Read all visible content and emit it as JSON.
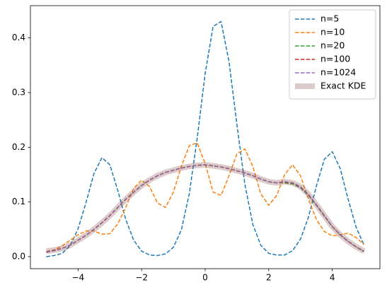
{
  "chart_data": {
    "type": "line",
    "x": [
      -5,
      -4.75,
      -4.5,
      -4.25,
      -4,
      -3.75,
      -3.5,
      -3.25,
      -3,
      -2.75,
      -2.5,
      -2.25,
      -2,
      -1.75,
      -1.5,
      -1.25,
      -1,
      -0.75,
      -0.5,
      -0.25,
      0,
      0.25,
      0.5,
      0.75,
      1,
      1.25,
      1.5,
      1.75,
      2,
      2.25,
      2.5,
      2.75,
      3,
      3.25,
      3.5,
      3.75,
      4,
      4.25,
      4.5,
      4.75,
      5
    ],
    "series": [
      {
        "name": "n=5",
        "color": "#1f77b4",
        "style": "dashed",
        "values": [
          0.0,
          0.002,
          0.006,
          0.02,
          0.051,
          0.099,
          0.152,
          0.181,
          0.168,
          0.121,
          0.068,
          0.03,
          0.01,
          0.003,
          0.002,
          0.005,
          0.017,
          0.049,
          0.115,
          0.217,
          0.335,
          0.421,
          0.43,
          0.357,
          0.241,
          0.132,
          0.059,
          0.021,
          0.006,
          0.003,
          0.003,
          0.011,
          0.032,
          0.072,
          0.129,
          0.178,
          0.192,
          0.161,
          0.105,
          0.054,
          0.021
        ]
      },
      {
        "name": "n=10",
        "color": "#ff7f0e",
        "style": "dashed",
        "values": [
          0.008,
          0.012,
          0.02,
          0.03,
          0.04,
          0.047,
          0.047,
          0.041,
          0.042,
          0.06,
          0.09,
          0.125,
          0.14,
          0.128,
          0.098,
          0.09,
          0.118,
          0.165,
          0.203,
          0.208,
          0.17,
          0.118,
          0.112,
          0.148,
          0.188,
          0.197,
          0.165,
          0.115,
          0.094,
          0.112,
          0.15,
          0.168,
          0.148,
          0.105,
          0.068,
          0.046,
          0.038,
          0.04,
          0.043,
          0.035,
          0.022
        ]
      },
      {
        "name": "n=20",
        "color": "#2ca02c",
        "style": "dashed",
        "values": [
          0.009,
          0.011,
          0.015,
          0.021,
          0.03,
          0.039,
          0.05,
          0.062,
          0.075,
          0.09,
          0.105,
          0.118,
          0.13,
          0.14,
          0.148,
          0.154,
          0.158,
          0.162,
          0.165,
          0.167,
          0.168,
          0.166,
          0.164,
          0.161,
          0.157,
          0.153,
          0.148,
          0.142,
          0.137,
          0.135,
          0.135,
          0.133,
          0.126,
          0.112,
          0.094,
          0.074,
          0.055,
          0.04,
          0.028,
          0.018,
          0.01
        ]
      },
      {
        "name": "n=100",
        "color": "#d62728",
        "style": "dashed",
        "values": [
          0.009,
          0.012,
          0.015,
          0.021,
          0.03,
          0.039,
          0.05,
          0.062,
          0.075,
          0.09,
          0.105,
          0.118,
          0.13,
          0.14,
          0.148,
          0.154,
          0.158,
          0.162,
          0.165,
          0.167,
          0.168,
          0.166,
          0.164,
          0.161,
          0.157,
          0.153,
          0.148,
          0.142,
          0.137,
          0.135,
          0.136,
          0.135,
          0.127,
          0.113,
          0.095,
          0.075,
          0.055,
          0.04,
          0.028,
          0.018,
          0.009
        ]
      },
      {
        "name": "n=1024",
        "color": "#9467bd",
        "style": "dashed",
        "values": [
          0.008,
          0.011,
          0.015,
          0.021,
          0.03,
          0.039,
          0.05,
          0.062,
          0.075,
          0.09,
          0.105,
          0.118,
          0.13,
          0.14,
          0.148,
          0.154,
          0.158,
          0.162,
          0.165,
          0.167,
          0.168,
          0.166,
          0.164,
          0.161,
          0.157,
          0.153,
          0.148,
          0.142,
          0.137,
          0.135,
          0.137,
          0.135,
          0.128,
          0.114,
          0.095,
          0.075,
          0.055,
          0.04,
          0.028,
          0.018,
          0.009
        ]
      },
      {
        "name": "Exact KDE",
        "color": "#8c564b",
        "style": "solid",
        "width": 8,
        "opacity": 0.3,
        "values": [
          0.01,
          0.012,
          0.015,
          0.021,
          0.03,
          0.039,
          0.05,
          0.062,
          0.075,
          0.09,
          0.105,
          0.118,
          0.13,
          0.14,
          0.148,
          0.154,
          0.158,
          0.162,
          0.165,
          0.167,
          0.168,
          0.166,
          0.164,
          0.161,
          0.157,
          0.153,
          0.148,
          0.142,
          0.137,
          0.135,
          0.137,
          0.135,
          0.128,
          0.114,
          0.095,
          0.075,
          0.055,
          0.04,
          0.028,
          0.018,
          0.01
        ]
      }
    ],
    "xlim": [
      -5.5,
      5.5
    ],
    "ylim": [
      -0.022,
      0.459
    ],
    "xticks": [
      {
        "value": -4,
        "label": "−4"
      },
      {
        "value": -2,
        "label": "−2"
      },
      0,
      2,
      4
    ],
    "yticks": [
      {
        "value": 0,
        "label": "0.0"
      },
      0.1,
      0.2,
      0.3,
      0.4
    ],
    "legend": "upper right"
  }
}
